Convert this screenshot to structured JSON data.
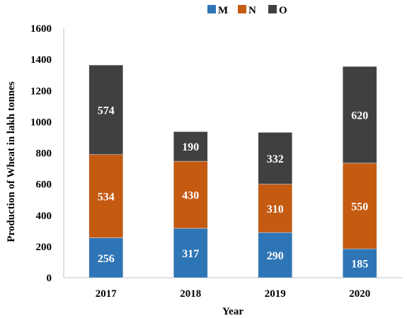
{
  "chart_data": {
    "type": "bar",
    "stacked": true,
    "title": "",
    "xlabel": "Year",
    "ylabel": "Production of Wheat in lakh tonnes",
    "categories": [
      "2017",
      "2018",
      "2019",
      "2020"
    ],
    "series": [
      {
        "name": "M",
        "values": [
          256,
          317,
          290,
          185
        ],
        "color": "#2e75b6"
      },
      {
        "name": "N",
        "values": [
          534,
          430,
          310,
          550
        ],
        "color": "#c55a11"
      },
      {
        "name": "O",
        "values": [
          574,
          190,
          332,
          620
        ],
        "color": "#404040"
      }
    ],
    "ylim": [
      0,
      1600
    ],
    "yticks": [
      0,
      200,
      400,
      600,
      800,
      1000,
      1200,
      1400,
      1600
    ],
    "grid": false,
    "legend": "top-center",
    "data_labels": true
  }
}
